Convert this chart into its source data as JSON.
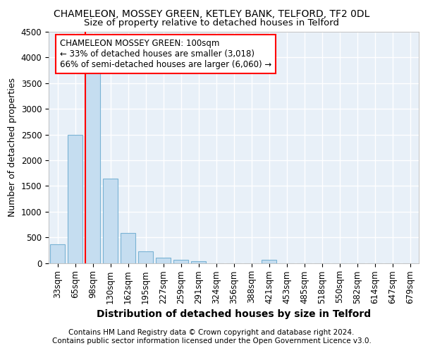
{
  "title": "CHAMELEON, MOSSEY GREEN, KETLEY BANK, TELFORD, TF2 0DL",
  "subtitle": "Size of property relative to detached houses in Telford",
  "xlabel": "Distribution of detached houses by size in Telford",
  "ylabel": "Number of detached properties",
  "categories": [
    "33sqm",
    "65sqm",
    "98sqm",
    "130sqm",
    "162sqm",
    "195sqm",
    "227sqm",
    "259sqm",
    "291sqm",
    "324sqm",
    "356sqm",
    "388sqm",
    "421sqm",
    "453sqm",
    "485sqm",
    "518sqm",
    "550sqm",
    "582sqm",
    "614sqm",
    "647sqm",
    "679sqm"
  ],
  "values": [
    370,
    2500,
    3750,
    1640,
    590,
    225,
    105,
    65,
    35,
    0,
    0,
    0,
    55,
    0,
    0,
    0,
    0,
    0,
    0,
    0,
    0
  ],
  "bar_color": "#c5ddf0",
  "bar_edge_color": "#7ab3d4",
  "red_line_index": 2,
  "annotation_line1": "CHAMELEON MOSSEY GREEN: 100sqm",
  "annotation_line2": "← 33% of detached houses are smaller (3,018)",
  "annotation_line3": "66% of semi-detached houses are larger (6,060) →",
  "annotation_box_color": "white",
  "annotation_box_edge_color": "red",
  "ylim": [
    0,
    4500
  ],
  "yticks": [
    0,
    500,
    1000,
    1500,
    2000,
    2500,
    3000,
    3500,
    4000,
    4500
  ],
  "footer_line1": "Contains HM Land Registry data © Crown copyright and database right 2024.",
  "footer_line2": "Contains public sector information licensed under the Open Government Licence v3.0.",
  "background_color": "#e8f0f8",
  "grid_color": "#ffffff",
  "title_fontsize": 10,
  "subtitle_fontsize": 9.5,
  "xlabel_fontsize": 10,
  "ylabel_fontsize": 9,
  "tick_fontsize": 8.5,
  "footer_fontsize": 7.5,
  "annotation_fontsize": 8.5
}
